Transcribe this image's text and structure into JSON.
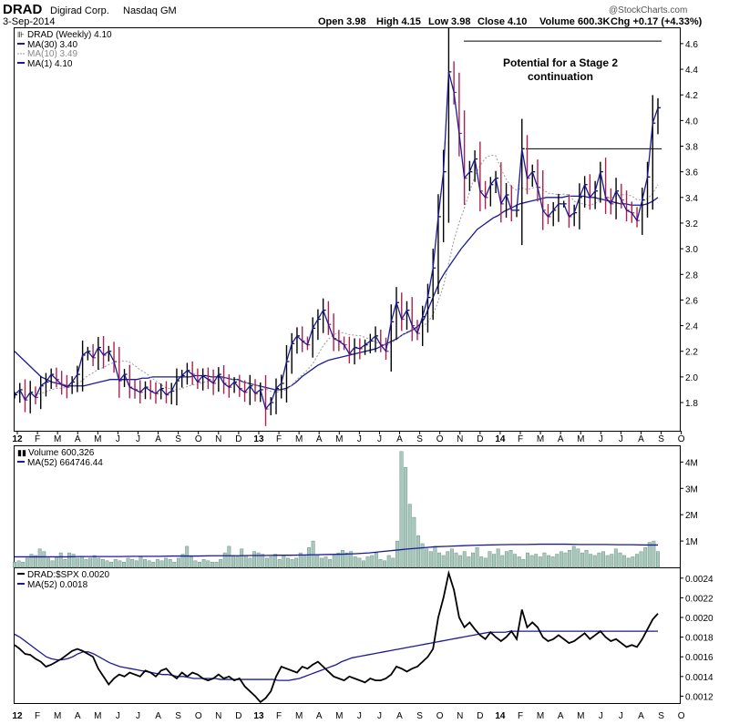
{
  "header": {
    "symbol": "DRAD",
    "company": "Digirad Corp.",
    "exchange": "Nasdaq GM",
    "date": "3-Sep-2014",
    "open": "Open 3.98",
    "high": "High 4.15",
    "low": "Low 3.98",
    "close": "Close 4.10",
    "volume": "Volume 600.3K",
    "chg": "Chg +0.17 (+4.33%)",
    "watermark": "@StockCharts.com"
  },
  "price_panel": {
    "legend": [
      {
        "label": "DRAD (Weekly) 4.10",
        "color": "#000000"
      },
      {
        "label": "MA(30) 3.40",
        "color": "#1a1a99"
      },
      {
        "label": "MA(10) 3.49",
        "color": "#8a8a8a"
      },
      {
        "label": "MA(1) 4.10",
        "color": "#1a1a99"
      }
    ],
    "annotation_line1": "Potential for a Stage 2",
    "annotation_line2": "continuation",
    "y_ticks": [
      "4.6",
      "4.4",
      "4.2",
      "4.0",
      "3.8",
      "3.6",
      "3.4",
      "3.2",
      "3.0",
      "2.8",
      "2.6",
      "2.4",
      "2.2",
      "2.0",
      "1.8"
    ],
    "resistance_high": 4.62,
    "resistance_mid": 3.78
  },
  "volume_panel": {
    "legend_volume": "Volume 600,326",
    "legend_ma": "MA(52) 664746.44",
    "y_ticks": [
      "4M",
      "3M",
      "2M",
      "1M"
    ]
  },
  "ratio_panel": {
    "legend_ratio": "DRAD:$SPX 0.0020",
    "legend_ma": "MA(52) 0.0018",
    "y_ticks": [
      "0.0024",
      "0.0022",
      "0.0020",
      "0.0018",
      "0.0016",
      "0.0014",
      "0.0012"
    ]
  },
  "x_axis": {
    "labels": [
      "12",
      "F",
      "M",
      "A",
      "M",
      "J",
      "J",
      "A",
      "S",
      "O",
      "N",
      "D",
      "13",
      "F",
      "M",
      "A",
      "M",
      "J",
      "J",
      "A",
      "S",
      "O",
      "N",
      "D",
      "14",
      "F",
      "M",
      "A",
      "M",
      "J",
      "J",
      "A",
      "S",
      "O"
    ],
    "bold": [
      "12",
      "13",
      "14"
    ]
  },
  "colors": {
    "up_bar": "#000000",
    "down_bar": "#b0204a",
    "ma30": "#1a1a99",
    "ma10": "#999999",
    "volume_fill": "#a8c8bc",
    "volume_stroke": "#6f9588"
  },
  "chart_data": {
    "type": "line",
    "title": "DRAD Digirad Corp. Nasdaq GM",
    "frequency": "weekly",
    "x_start": "2012-01",
    "x_end": "2014-09",
    "price_ylim": [
      1.58,
      4.72
    ],
    "close": [
      1.86,
      1.9,
      1.82,
      1.88,
      1.84,
      1.93,
      1.96,
      2.02,
      1.98,
      1.94,
      1.92,
      1.96,
      2.02,
      2.17,
      2.2,
      2.15,
      2.23,
      2.17,
      2.2,
      2.12,
      1.97,
      2.02,
      1.92,
      1.9,
      1.88,
      1.92,
      1.89,
      1.87,
      1.91,
      1.86,
      1.89,
      1.97,
      2.01,
      2.05,
      2.02,
      1.96,
      2.01,
      1.98,
      1.95,
      2.02,
      1.95,
      1.92,
      1.96,
      1.91,
      1.88,
      1.93,
      1.87,
      1.9,
      1.75,
      1.8,
      1.91,
      1.95,
      2.12,
      2.26,
      2.32,
      2.28,
      2.25,
      2.38,
      2.45,
      2.52,
      2.41,
      2.3,
      2.28,
      2.25,
      2.18,
      2.23,
      2.22,
      2.25,
      2.28,
      2.32,
      2.25,
      2.2,
      2.43,
      2.58,
      2.45,
      2.52,
      2.4,
      2.34,
      2.47,
      2.62,
      2.85,
      3.25,
      3.6,
      4.38,
      4.22,
      3.9,
      3.55,
      3.6,
      3.7,
      3.45,
      3.4,
      3.5,
      3.55,
      3.35,
      3.42,
      3.3,
      3.3,
      3.78,
      3.55,
      3.6,
      3.48,
      3.3,
      3.25,
      3.3,
      3.35,
      3.35,
      3.25,
      3.28,
      3.4,
      3.5,
      3.4,
      3.45,
      3.6,
      3.4,
      3.35,
      3.45,
      3.38,
      3.3,
      3.28,
      3.22,
      3.38,
      3.56,
      3.98,
      4.1
    ],
    "ma30_ylim": [
      1.58,
      4.72
    ],
    "ma30": [
      2.2,
      2.16,
      2.12,
      2.08,
      2.04,
      2.0,
      1.98,
      1.96,
      1.95,
      1.94,
      1.93,
      1.93,
      1.93,
      1.93,
      1.94,
      1.95,
      1.96,
      1.97,
      1.98,
      1.98,
      1.98,
      1.98,
      1.98,
      1.98,
      1.99,
      1.99,
      2.0,
      2.0,
      2.0,
      2.0,
      2.0,
      2.0,
      2.0,
      2.0,
      2.01,
      2.01,
      2.01,
      2.0,
      2.0,
      2.0,
      1.99,
      1.98,
      1.98,
      1.96,
      1.95,
      1.94,
      1.93,
      1.92,
      1.91,
      1.9,
      1.9,
      1.91,
      1.93,
      1.96,
      2.0,
      2.03,
      2.06,
      2.09,
      2.11,
      2.13,
      2.14,
      2.15,
      2.16,
      2.17,
      2.18,
      2.19,
      2.2,
      2.21,
      2.22,
      2.24,
      2.26,
      2.28,
      2.3,
      2.33,
      2.35,
      2.37,
      2.4,
      2.45,
      2.55,
      2.65,
      2.75,
      2.82,
      2.88,
      2.94,
      3.0,
      3.05,
      3.1,
      3.15,
      3.18,
      3.21,
      3.24,
      3.26,
      3.29,
      3.31,
      3.33,
      3.35,
      3.36,
      3.37,
      3.38,
      3.39,
      3.4,
      3.4,
      3.4,
      3.4,
      3.41,
      3.41,
      3.41,
      3.41,
      3.4,
      3.4,
      3.39,
      3.38,
      3.37,
      3.36,
      3.35,
      3.35,
      3.34,
      3.34,
      3.34,
      3.35,
      3.37,
      3.4
    ],
    "volume_ylim": [
      0,
      4.6
    ],
    "volume_millions": [
      0.2,
      0.25,
      0.2,
      0.35,
      0.5,
      0.45,
      0.7,
      0.6,
      0.35,
      0.25,
      0.4,
      0.55,
      0.3,
      0.55,
      0.5,
      0.35,
      0.4,
      0.3,
      0.35,
      0.45,
      0.35,
      0.3,
      0.25,
      0.2,
      0.3,
      0.25,
      0.2,
      0.35,
      0.3,
      0.25,
      0.4,
      0.3,
      0.25,
      0.2,
      0.3,
      0.25,
      0.35,
      0.3,
      0.2,
      0.35,
      0.5,
      0.8,
      0.4,
      0.25,
      0.2,
      0.3,
      0.25,
      0.2,
      0.2,
      0.3,
      0.55,
      0.8,
      0.45,
      0.4,
      0.7,
      0.45,
      0.35,
      0.6,
      0.55,
      0.5,
      0.35,
      0.4,
      0.5,
      0.3,
      0.45,
      0.35,
      0.3,
      0.35,
      0.55,
      0.45,
      0.75,
      1.0,
      0.45,
      0.35,
      0.4,
      0.3,
      0.45,
      0.55,
      0.65,
      0.55,
      0.6,
      0.4,
      0.35,
      0.25,
      0.4,
      0.45,
      0.55,
      0.3,
      0.25,
      0.45,
      0.35,
      1.0,
      4.4,
      3.8,
      2.4,
      1.9,
      1.2,
      0.9,
      0.7,
      0.6,
      0.8,
      0.55,
      0.45,
      0.6,
      0.7,
      0.55,
      0.45,
      0.6,
      0.4,
      0.55,
      0.75,
      0.4,
      0.35,
      0.6,
      0.5,
      0.7,
      0.45,
      0.6,
      0.65,
      0.5,
      0.4,
      0.3,
      0.55,
      0.45,
      0.5,
      0.4,
      0.55,
      0.45,
      0.4,
      0.5,
      0.6,
      0.55,
      0.65,
      0.8,
      0.7,
      0.55,
      0.65,
      0.5,
      0.45,
      0.55,
      0.6,
      0.45,
      0.5,
      0.7,
      0.55,
      0.45,
      0.35,
      0.4,
      0.5,
      0.6,
      0.75,
      0.95,
      1.0,
      0.6
    ],
    "volume_ma52_millions": [
      0.4,
      0.4,
      0.4,
      0.4,
      0.4,
      0.41,
      0.41,
      0.41,
      0.41,
      0.42,
      0.42,
      0.42,
      0.43,
      0.43,
      0.43,
      0.44,
      0.44,
      0.44,
      0.45,
      0.45,
      0.46,
      0.46,
      0.47,
      0.48,
      0.49,
      0.5,
      0.52,
      0.55,
      0.6,
      0.65,
      0.7,
      0.74,
      0.78,
      0.8,
      0.82,
      0.84,
      0.85,
      0.86,
      0.87,
      0.87,
      0.88,
      0.88,
      0.88,
      0.87,
      0.87,
      0.87,
      0.86,
      0.86,
      0.85,
      0.85
    ],
    "ratio_ylim": [
      0.00113,
      0.0025
    ],
    "ratio_drad_spx": [
      0.00172,
      0.00168,
      0.00163,
      0.00162,
      0.00158,
      0.00155,
      0.0015,
      0.00152,
      0.00155,
      0.00158,
      0.00162,
      0.00166,
      0.00168,
      0.00166,
      0.00163,
      0.0016,
      0.00148,
      0.0014,
      0.00132,
      0.00138,
      0.00142,
      0.0014,
      0.00144,
      0.00142,
      0.0014,
      0.00146,
      0.00144,
      0.0014,
      0.00146,
      0.00148,
      0.00142,
      0.00138,
      0.00144,
      0.0014,
      0.00144,
      0.00142,
      0.00138,
      0.00136,
      0.00138,
      0.00142,
      0.00138,
      0.0014,
      0.00136,
      0.00138,
      0.0013,
      0.00125,
      0.0012,
      0.00114,
      0.00118,
      0.00125,
      0.0014,
      0.0015,
      0.00148,
      0.00146,
      0.00144,
      0.0015,
      0.00148,
      0.00152,
      0.00155,
      0.0015,
      0.00145,
      0.0014,
      0.00138,
      0.00136,
      0.0014,
      0.00138,
      0.00136,
      0.00134,
      0.00138,
      0.00136,
      0.00136,
      0.00138,
      0.00142,
      0.0015,
      0.00148,
      0.00145,
      0.00148,
      0.0015,
      0.00155,
      0.0016,
      0.00168,
      0.002,
      0.0022,
      0.00245,
      0.00228,
      0.002,
      0.0019,
      0.00195,
      0.00188,
      0.00182,
      0.00178,
      0.00185,
      0.0018,
      0.00176,
      0.0018,
      0.00186,
      0.00178,
      0.00208,
      0.0019,
      0.00195,
      0.0019,
      0.0018,
      0.00176,
      0.00178,
      0.00182,
      0.00178,
      0.00174,
      0.00176,
      0.0018,
      0.00184,
      0.00178,
      0.00182,
      0.00186,
      0.0018,
      0.00176,
      0.00178,
      0.00174,
      0.0017,
      0.00172,
      0.0017,
      0.00178,
      0.00188,
      0.00198,
      0.00204
    ],
    "ratio_ma52": [
      0.00183,
      0.0018,
      0.00176,
      0.00172,
      0.00168,
      0.00164,
      0.0016,
      0.00158,
      0.00157,
      0.00157,
      0.00158,
      0.0016,
      0.00163,
      0.00165,
      0.00165,
      0.00163,
      0.0016,
      0.00157,
      0.00154,
      0.00152,
      0.0015,
      0.00149,
      0.00148,
      0.00147,
      0.00146,
      0.00145,
      0.00144,
      0.00143,
      0.00142,
      0.00142,
      0.00141,
      0.0014,
      0.0014,
      0.00139,
      0.00138,
      0.00138,
      0.00138,
      0.00138,
      0.00138,
      0.00137,
      0.00137,
      0.00137,
      0.00137,
      0.00137,
      0.00137,
      0.00137,
      0.00137,
      0.00137,
      0.00137,
      0.00137,
      0.00136,
      0.00136,
      0.00136,
      0.00137,
      0.00138,
      0.0014,
      0.00142,
      0.00144,
      0.00146,
      0.00148,
      0.0015,
      0.00152,
      0.00155,
      0.00157,
      0.00159,
      0.0016,
      0.00161,
      0.00162,
      0.00163,
      0.00164,
      0.00165,
      0.00166,
      0.00167,
      0.00168,
      0.00169,
      0.0017,
      0.00171,
      0.00172,
      0.00173,
      0.00174,
      0.00175,
      0.00176,
      0.00177,
      0.00178,
      0.00179,
      0.0018,
      0.00181,
      0.00182,
      0.00183,
      0.00184,
      0.00185,
      0.00185,
      0.00185,
      0.00185,
      0.00186,
      0.00186,
      0.00186,
      0.00186,
      0.00186,
      0.00186,
      0.00186,
      0.00186,
      0.00186,
      0.00186,
      0.00186,
      0.00186,
      0.00186,
      0.00186,
      0.00186,
      0.00186,
      0.00186,
      0.00186,
      0.00186,
      0.00186,
      0.00186,
      0.00186,
      0.00186,
      0.00186,
      0.00186,
      0.00186,
      0.00186,
      0.00186,
      0.00186
    ]
  }
}
